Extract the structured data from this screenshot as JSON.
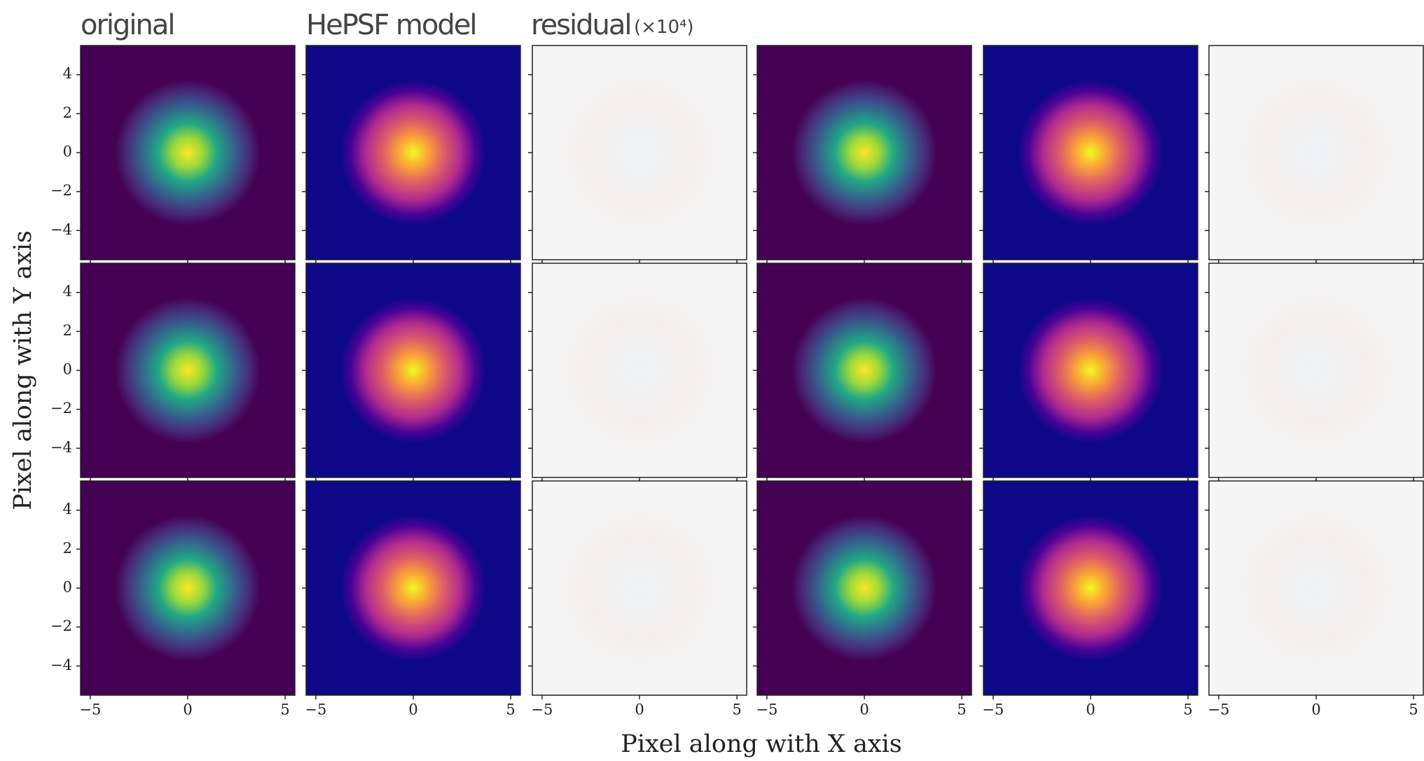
{
  "chart_data": {
    "type": "image-grid",
    "titles": [
      "original",
      "HePSF model",
      "residual"
    ],
    "title_note": "(×10⁴)",
    "xlabel": "Pixel along with X axis",
    "ylabel": "Pixel along with Y axis",
    "xlim": [
      -5.5,
      5.5
    ],
    "ylim": [
      -5.5,
      5.5
    ],
    "xticks": [
      {
        "value": -5,
        "label": "−5"
      },
      0,
      5
    ],
    "yticks": [
      {
        "value": -4,
        "label": "−4"
      },
      {
        "value": -2,
        "label": "−2"
      },
      0,
      2,
      4
    ]
  }
}
